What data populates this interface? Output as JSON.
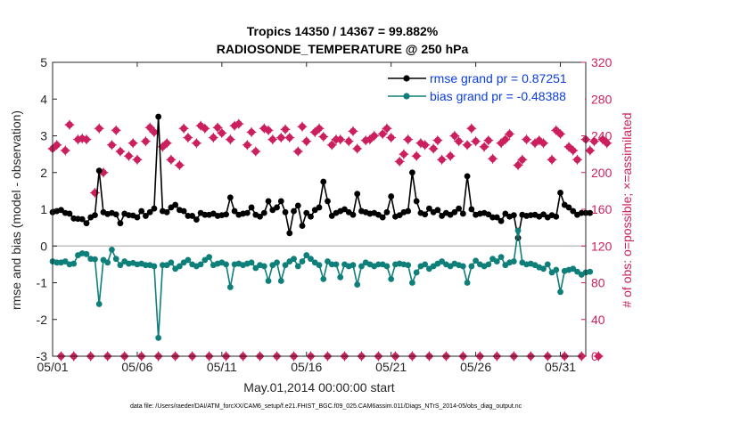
{
  "chart_data": {
    "type": "line",
    "title_line1": "Tropics 14350 / 14367 = 99.882%",
    "title_line2": "RADIOSONDE_TEMPERATURE @ 250 hPa",
    "xlabel": "May.01,2014 00:00:00 start",
    "ylabel": "rmse and bias (model - observation)",
    "ylabel_right": "# of obs: o=possible; ×=assimilated",
    "footnote": "data file: /Users/raeder/DAI/ATM_forcXX/CAM6_setup/f.e21.FHIST_BGC.f09_025.CAM6assim.011/Diags_NTrS_2014-05/obs_diag_output.nc",
    "xlim": [
      1,
      32.5
    ],
    "ylim": [
      -3,
      5
    ],
    "ylim_right": [
      0,
      320
    ],
    "x_ticks": [
      1,
      6,
      11,
      16,
      21,
      26,
      31
    ],
    "x_tick_labels": [
      "05/01",
      "05/06",
      "05/11",
      "05/16",
      "05/21",
      "05/26",
      "05/31"
    ],
    "y_ticks": [
      -3,
      -2,
      -1,
      0,
      1,
      2,
      3,
      4,
      5
    ],
    "y_tick_labels": [
      "-3",
      "-2",
      "-1",
      "0",
      "1",
      "2",
      "3",
      "4",
      "5"
    ],
    "y_right_ticks": [
      0,
      40,
      80,
      120,
      160,
      200,
      240,
      280,
      320
    ],
    "y_right_tick_labels": [
      "0",
      "40",
      "80",
      "120",
      "160",
      "200",
      "240",
      "280",
      "320"
    ],
    "zero_line": 0,
    "legend": [
      {
        "label": "rmse grand pr = 0.87251",
        "color": "#000000"
      },
      {
        "label": "bias grand pr = -0.48388",
        "color": "#0f7f7a"
      }
    ],
    "colors": {
      "rmse": "#000000",
      "bias": "#0f7f7a",
      "obs": "#cc1f5e",
      "zero": "#c0c0c0",
      "legend_text": "#0b3de0"
    },
    "x_start": 1,
    "x_step": 0.25,
    "series": [
      {
        "name": "rmse",
        "values": [
          0.92,
          0.95,
          0.98,
          0.9,
          0.88,
          0.75,
          0.74,
          0.73,
          0.62,
          0.78,
          0.84,
          2.05,
          0.92,
          0.87,
          0.9,
          0.86,
          0.62,
          0.88,
          0.84,
          0.83,
          0.78,
          0.95,
          0.82,
          0.92,
          1.02,
          3.52,
          0.95,
          0.92,
          1.05,
          1.12,
          0.98,
          0.95,
          0.82,
          0.82,
          0.72,
          0.9,
          0.85,
          0.85,
          0.88,
          0.82,
          0.84,
          0.86,
          1.32,
          0.95,
          0.85,
          0.88,
          0.9,
          1.05,
          0.85,
          0.8,
          0.9,
          1.22,
          0.98,
          1.05,
          1.22,
          0.92,
          0.35,
          0.95,
          1.1,
          0.55,
          0.9,
          0.8,
          0.98,
          1.05,
          1.75,
          1.22,
          0.82,
          0.9,
          0.95,
          1.0,
          0.92,
          0.85,
          1.42,
          0.95,
          0.92,
          0.88,
          0.9,
          0.85,
          0.78,
          0.92,
          1.35,
          0.8,
          0.84,
          0.92,
          0.95,
          2.0,
          1.22,
          0.9,
          0.86,
          1.02,
          0.92,
          0.98,
          0.82,
          0.9,
          0.85,
          0.92,
          1.02,
          0.88,
          1.9,
          1.0,
          0.85,
          0.88,
          0.9,
          0.86,
          0.78,
          0.78,
          0.68,
          0.88,
          0.8,
          0.84,
          0.22,
          0.85,
          0.82,
          0.84,
          0.85,
          0.8,
          0.86,
          0.78,
          0.84,
          0.8,
          1.45,
          1.12,
          1.05,
          0.95,
          0.85,
          0.9,
          0.9,
          0.9
        ]
      },
      {
        "name": "bias",
        "values": [
          -0.42,
          -0.45,
          -0.45,
          -0.42,
          -0.5,
          -0.48,
          -0.25,
          -0.2,
          -0.22,
          -0.35,
          -0.36,
          -1.58,
          -0.38,
          -0.45,
          -0.1,
          -0.35,
          -0.52,
          -0.42,
          -0.48,
          -0.46,
          -0.5,
          -0.48,
          -0.52,
          -0.52,
          -0.55,
          -2.5,
          -0.52,
          -0.52,
          -0.45,
          -0.62,
          -0.55,
          -0.45,
          -0.38,
          -0.5,
          -0.55,
          -0.5,
          -0.38,
          -0.3,
          -0.52,
          -0.48,
          -0.45,
          -0.5,
          -1.12,
          -0.5,
          -0.48,
          -0.52,
          -0.48,
          -0.45,
          -0.6,
          -0.52,
          -0.55,
          -0.95,
          -0.52,
          -0.45,
          -0.95,
          -0.52,
          -0.42,
          -0.35,
          -0.55,
          -0.42,
          -0.25,
          -0.35,
          -0.45,
          -0.52,
          -0.9,
          -0.42,
          -0.5,
          -0.5,
          -0.85,
          -0.5,
          -0.55,
          -0.52,
          -1.05,
          -0.55,
          -0.45,
          -0.5,
          -0.55,
          -0.5,
          -0.5,
          -0.55,
          -0.9,
          -0.5,
          -0.48,
          -0.5,
          -0.52,
          -1.0,
          -0.72,
          -0.55,
          -0.5,
          -0.62,
          -0.55,
          -0.48,
          -0.42,
          -0.5,
          -0.55,
          -0.48,
          -0.52,
          -0.55,
          -1.0,
          -0.55,
          -0.4,
          -0.5,
          -0.55,
          -0.5,
          -0.35,
          -0.42,
          -0.3,
          -0.52,
          -0.45,
          -0.42,
          0.42,
          -0.45,
          -0.5,
          -0.48,
          -0.52,
          -0.58,
          -0.62,
          -0.5,
          -0.72,
          -0.65,
          -1.25,
          -0.68,
          -0.65,
          -0.62,
          -0.7,
          -0.78,
          -0.72,
          -0.7
        ]
      },
      {
        "name": "obs_assimilated",
        "values": [
          226,
          230,
          0,
          224,
          252,
          0,
          236,
          237,
          236,
          0,
          178,
          248,
          200,
          0,
          230,
          246,
          223,
          0,
          218,
          232,
          214,
          0,
          234,
          249,
          244,
          0,
          228,
          232,
          214,
          0,
          208,
          248,
          238,
          0,
          232,
          251,
          248,
          0,
          238,
          249,
          243,
          0,
          236,
          251,
          253,
          0,
          230,
          244,
          223,
          0,
          248,
          246,
          236,
          0,
          238,
          247,
          238,
          0,
          223,
          250,
          234,
          0,
          244,
          248,
          239,
          0,
          230,
          236,
          236,
          0,
          234,
          245,
          226,
          0,
          235,
          236,
          240,
          0,
          242,
          248,
          238,
          0,
          212,
          220,
          236,
          0,
          218,
          232,
          230,
          0,
          226,
          235,
          214,
          0,
          218,
          240,
          234,
          0,
          230,
          248,
          234,
          0,
          228,
          235,
          215,
          0,
          232,
          236,
          242,
          0,
          208,
          214,
          236,
          0,
          232,
          235,
          232,
          0,
          214,
          246,
          242,
          0,
          228,
          224,
          214,
          0,
          236,
          224,
          234,
          0,
          236,
          232
        ]
      },
      {
        "name": "obs_possible",
        "values": [
          226,
          230,
          0,
          224,
          252,
          0,
          236,
          237,
          236,
          0,
          178,
          248,
          200,
          0,
          230,
          246,
          223,
          0,
          218,
          232,
          214,
          0,
          234,
          249,
          244,
          0,
          228,
          232,
          214,
          0,
          208,
          248,
          238,
          0,
          232,
          251,
          248,
          0,
          238,
          249,
          243,
          0,
          236,
          251,
          253,
          0,
          230,
          244,
          223,
          0,
          248,
          246,
          236,
          0,
          238,
          247,
          238,
          0,
          223,
          250,
          234,
          0,
          244,
          248,
          239,
          0,
          230,
          236,
          236,
          0,
          234,
          245,
          226,
          0,
          235,
          236,
          240,
          0,
          242,
          248,
          238,
          0,
          212,
          220,
          236,
          0,
          218,
          232,
          230,
          0,
          226,
          235,
          214,
          0,
          218,
          240,
          234,
          0,
          230,
          248,
          234,
          0,
          228,
          235,
          215,
          0,
          232,
          236,
          242,
          0,
          208,
          214,
          236,
          0,
          232,
          235,
          232,
          0,
          214,
          246,
          242,
          0,
          228,
          224,
          214,
          0,
          236,
          224,
          234,
          0,
          236,
          232
        ]
      }
    ]
  }
}
